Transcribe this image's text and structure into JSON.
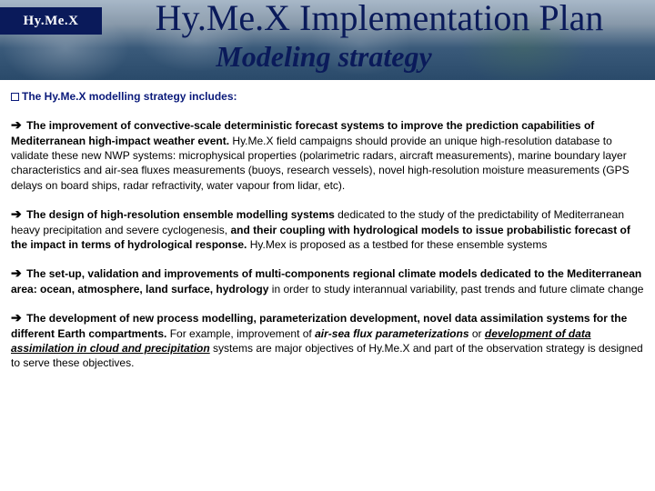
{
  "header": {
    "logo": "Hy.Me.X",
    "title": "Hy.Me.X Implementation Plan",
    "subtitle": "Modeling strategy"
  },
  "intro": "The  Hy.Me.X modelling strategy includes:",
  "p1": {
    "lead": "The improvement of convective-scale deterministic forecast systems to improve the prediction capabilities of Mediterranean high-impact weather event.",
    "rest": " Hy.Me.X field campaigns should provide an unique high-resolution database to validate these new NWP systems: microphysical properties (polarimetric radars, aircraft measurements),  marine boundary layer characteristics and air-sea fluxes measurements (buoys, research vessels), novel high-resolution moisture measurements (GPS delays on board ships, radar refractivity, water vapour  from lidar, etc)."
  },
  "p2": {
    "a": "The design of high-resolution ensemble modelling systems",
    "b": " dedicated to the study of the predictability of Mediterranean heavy precipitation and severe cyclogenesis, ",
    "c": "and their coupling with hydrological models to issue probabilistic forecast of the impact in terms of hydrological response.",
    "d": " Hy.Mex is proposed as a testbed for these ensemble systems"
  },
  "p3": {
    "a": "The set-up, validation and improvements of multi-components regional climate models dedicated to the Mediterranean area: ocean, atmosphere, land surface, hydrology",
    "b": " in order to study interannual variability, past trends and future climate change"
  },
  "p4": {
    "a": "The development of new process modelling, parameterization development, novel data assimilation systems for the different Earth compartments.",
    "b": " For example, improvement of ",
    "c": "air-sea flux parameterizations",
    "d": " or ",
    "e": "development of data assimilation in cloud and precipitation",
    "f": " systems are major objectives of Hy.Me.X and part of the observation strategy is designed to serve these objectives."
  }
}
